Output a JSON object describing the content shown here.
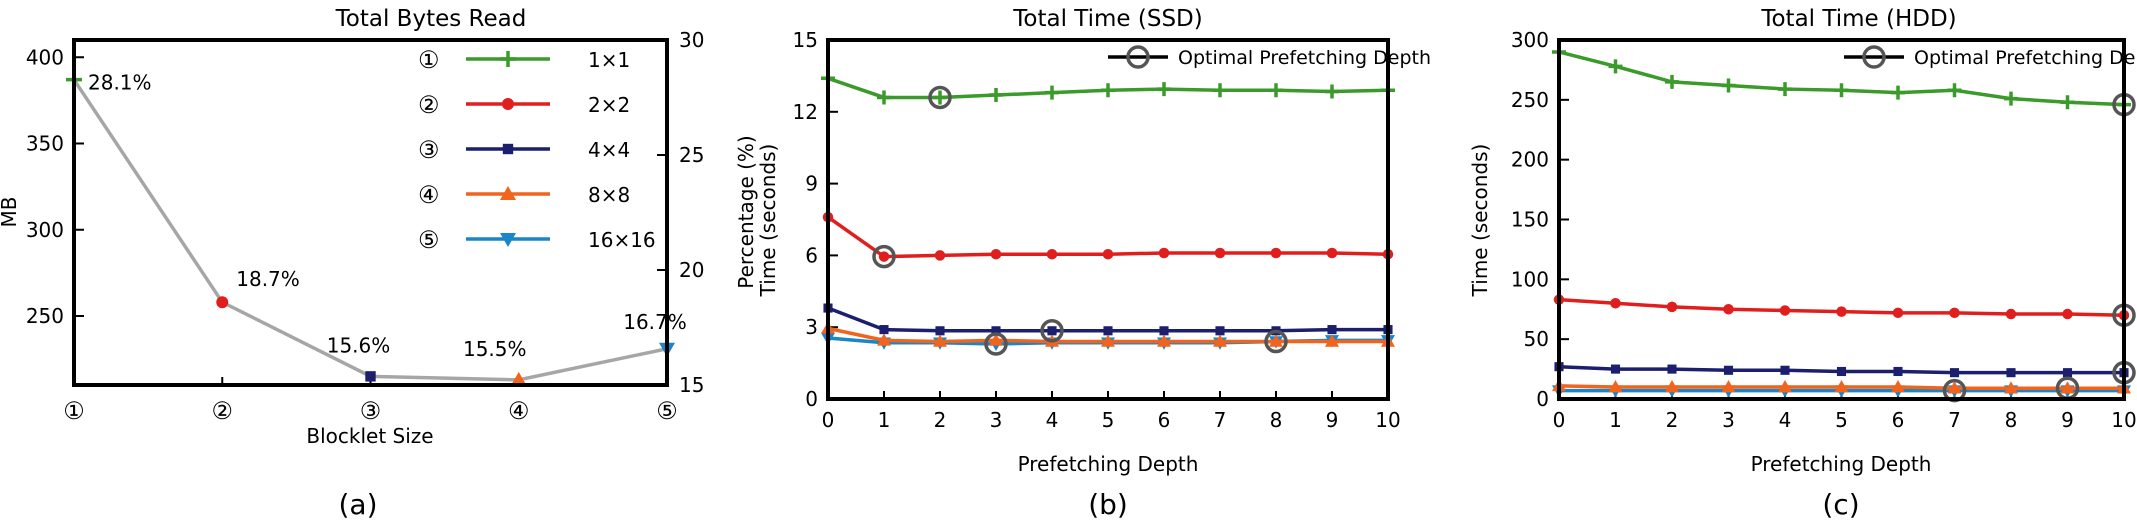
{
  "chart_data": [
    {
      "type": "line",
      "title": "Total Bytes Read",
      "xlabel": "Blocklet Size",
      "ylabel": "MB",
      "y2label": "Percentage (%)",
      "sublabel": "(a)",
      "categories": [
        "①",
        "②",
        "③",
        "④",
        "⑤"
      ],
      "ylim": [
        210,
        410
      ],
      "yticks": [
        250,
        300,
        350,
        400
      ],
      "y2lim": [
        15,
        30
      ],
      "y2ticks": [
        15,
        20,
        25,
        30
      ],
      "values": [
        387,
        258,
        215,
        213,
        231
      ],
      "point_labels": [
        "28.1%",
        "18.7%",
        "15.6%",
        "15.5%",
        "16.7%"
      ],
      "point_markers": [
        "plus",
        "circle",
        "square",
        "triangle-up",
        "triangle-down"
      ],
      "line_color": "#a6a6a6",
      "legend": {
        "placement": "top-right",
        "items": [
          {
            "num": "①",
            "label": "1×1",
            "color": "#3a9a2a",
            "marker": "plus"
          },
          {
            "num": "②",
            "label": "2×2",
            "color": "#e11e1e",
            "marker": "circle"
          },
          {
            "num": "③",
            "label": "4×4",
            "color": "#1b1f6e",
            "marker": "square"
          },
          {
            "num": "④",
            "label": "8×8",
            "color": "#f0641e",
            "marker": "triangle-up"
          },
          {
            "num": "⑤",
            "label": "16×16",
            "color": "#1a86c8",
            "marker": "triangle-down"
          }
        ]
      }
    },
    {
      "type": "line",
      "title": "Total Time (SSD)",
      "xlabel": "Prefetching Depth",
      "ylabel": "Time (seconds)",
      "sublabel": "(b)",
      "x": [
        0,
        1,
        2,
        3,
        4,
        5,
        6,
        7,
        8,
        9,
        10
      ],
      "xlim": [
        0,
        10
      ],
      "ylim": [
        0,
        15
      ],
      "yticks": [
        0,
        3,
        6,
        9,
        12,
        15
      ],
      "legend": {
        "placement": "top-right",
        "label": "Optimal Prefetching Depth"
      },
      "series": [
        {
          "label": "1×1",
          "color": "#3a9a2a",
          "marker": "plus",
          "values": [
            13.4,
            12.6,
            12.6,
            12.7,
            12.8,
            12.9,
            12.95,
            12.9,
            12.9,
            12.85,
            12.9
          ],
          "optimal": 2
        },
        {
          "label": "2×2",
          "color": "#e11e1e",
          "marker": "circle",
          "values": [
            7.6,
            5.95,
            6.0,
            6.05,
            6.05,
            6.05,
            6.1,
            6.1,
            6.1,
            6.1,
            6.05
          ],
          "optimal": 1
        },
        {
          "label": "4×4",
          "color": "#1b1f6e",
          "marker": "square",
          "values": [
            3.8,
            2.9,
            2.85,
            2.85,
            2.85,
            2.85,
            2.85,
            2.85,
            2.85,
            2.9,
            2.9
          ],
          "optimal": 4
        },
        {
          "label": "8×8",
          "color": "#f0641e",
          "marker": "triangle-up",
          "values": [
            2.95,
            2.45,
            2.4,
            2.45,
            2.4,
            2.4,
            2.4,
            2.4,
            2.4,
            2.4,
            2.4
          ],
          "optimal": 8
        },
        {
          "label": "16×16",
          "color": "#1a86c8",
          "marker": "triangle-down",
          "values": [
            2.55,
            2.35,
            2.35,
            2.3,
            2.35,
            2.35,
            2.35,
            2.35,
            2.4,
            2.45,
            2.45
          ],
          "optimal": 3
        }
      ]
    },
    {
      "type": "line",
      "title": "Total Time (HDD)",
      "xlabel": "Prefetching Depth",
      "ylabel": "Time (seconds)",
      "sublabel": "(c)",
      "x": [
        0,
        1,
        2,
        3,
        4,
        5,
        6,
        7,
        8,
        9,
        10
      ],
      "xlim": [
        0,
        10
      ],
      "ylim": [
        0,
        300
      ],
      "yticks": [
        0,
        50,
        100,
        150,
        200,
        250,
        300
      ],
      "legend": {
        "placement": "top-right",
        "label": "Optimal Prefetching Depth"
      },
      "series": [
        {
          "label": "1×1",
          "color": "#3a9a2a",
          "marker": "plus",
          "values": [
            290,
            278,
            265,
            262,
            259,
            258,
            256,
            258,
            251,
            248,
            246
          ],
          "optimal": 10
        },
        {
          "label": "2×2",
          "color": "#e11e1e",
          "marker": "circle",
          "values": [
            83,
            80,
            77,
            75,
            74,
            73,
            72,
            72,
            71,
            71,
            70
          ],
          "optimal": 10
        },
        {
          "label": "4×4",
          "color": "#1b1f6e",
          "marker": "square",
          "values": [
            27,
            25,
            25,
            24,
            24,
            23,
            23,
            22,
            22,
            22,
            22
          ],
          "optimal": 10
        },
        {
          "label": "8×8",
          "color": "#f0641e",
          "marker": "triangle-up",
          "values": [
            11,
            10,
            10,
            10,
            10,
            10,
            10,
            9,
            9,
            9,
            9
          ],
          "optimal": 9
        },
        {
          "label": "16×16",
          "color": "#1a86c8",
          "marker": "triangle-down",
          "values": [
            7,
            7,
            7,
            7,
            7,
            7,
            7,
            7,
            7,
            7,
            7
          ],
          "optimal": 7
        }
      ]
    }
  ]
}
